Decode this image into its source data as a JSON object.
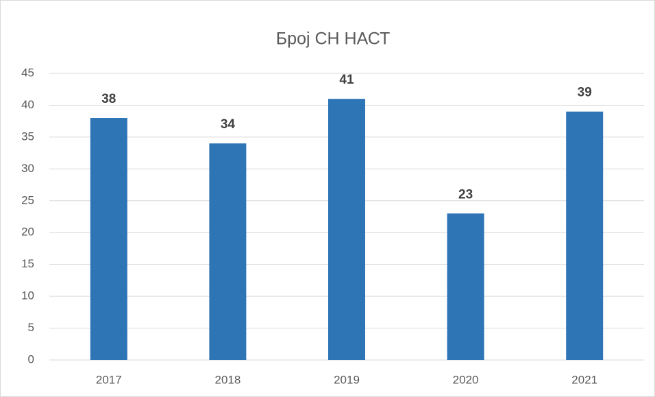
{
  "chart_data": {
    "type": "bar",
    "title": "Број СН НАСТ",
    "categories": [
      "2017",
      "2018",
      "2019",
      "2020",
      "2021"
    ],
    "values": [
      38,
      34,
      41,
      23,
      39
    ],
    "color": "#2e75b6",
    "ylim": [
      0,
      45
    ],
    "yticks": [
      0,
      5,
      10,
      15,
      20,
      25,
      30,
      35,
      40,
      45
    ],
    "grid": true
  }
}
